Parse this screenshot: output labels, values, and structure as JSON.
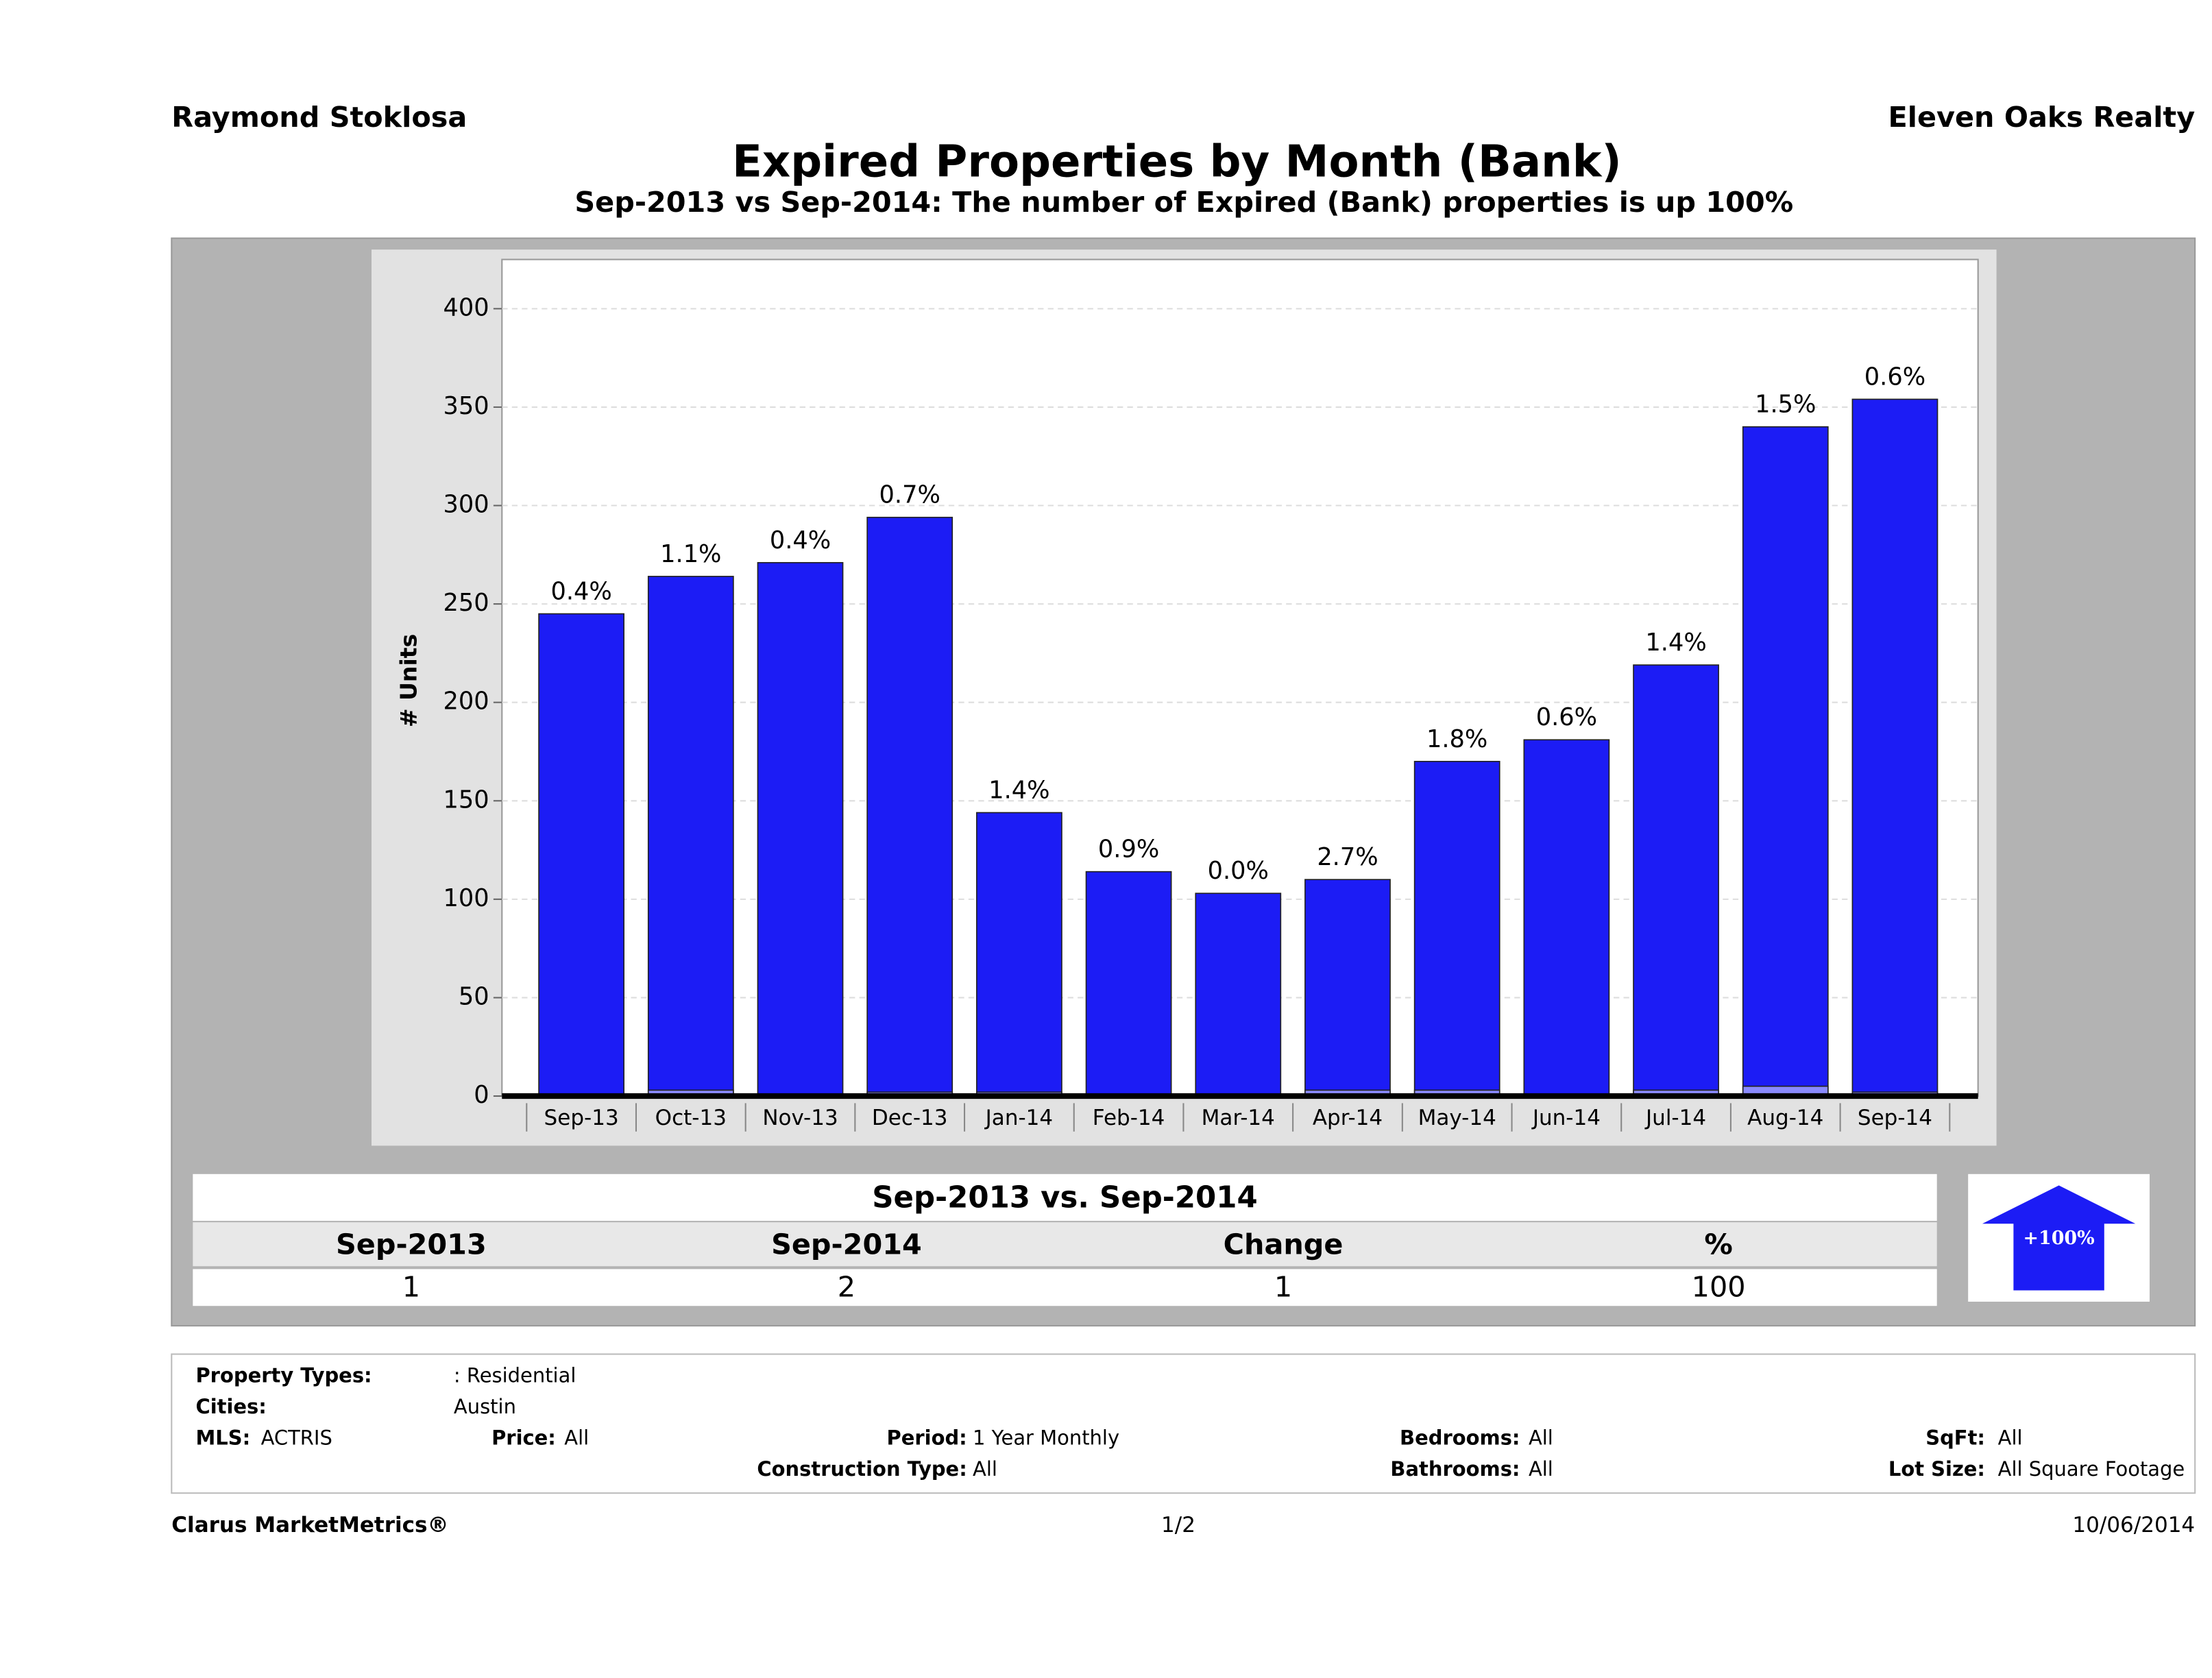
{
  "header": {
    "agent": "Raymond Stoklosa",
    "company": "Eleven Oaks Realty"
  },
  "chart_data": {
    "type": "bar",
    "title": "Expired Properties by Month (Bank)",
    "subtitle": "Sep-2013 vs Sep-2014: The number of Expired (Bank)  properties is up 100%",
    "y_label": "# Units",
    "categories": [
      "Sep-13",
      "Oct-13",
      "Nov-13",
      "Dec-13",
      "Jan-14",
      "Feb-14",
      "Mar-14",
      "Apr-14",
      "May-14",
      "Jun-14",
      "Jul-14",
      "Aug-14",
      "Sep-14"
    ],
    "series": [
      {
        "color": "#1c1cf5",
        "values": [
          245,
          264,
          271,
          294,
          144,
          114,
          103,
          110,
          170,
          181,
          219,
          340,
          354
        ]
      },
      {
        "color": "#8a8aff",
        "values": [
          1,
          3,
          1,
          2,
          2,
          1,
          0,
          3,
          3,
          1,
          3,
          5,
          2
        ]
      }
    ],
    "percent_labels": [
      "0.4%",
      "1.1%",
      "0.4%",
      "0.7%",
      "1.4%",
      "0.9%",
      "0.0%",
      "2.7%",
      "1.8%",
      "0.6%",
      "1.4%",
      "1.5%",
      "0.6%"
    ],
    "ylim": [
      0,
      425
    ],
    "yticks": [
      0,
      50,
      100,
      150,
      200,
      250,
      300,
      350,
      400
    ],
    "grid": true
  },
  "comparison": {
    "title": "Sep-2013 vs. Sep-2014",
    "headers": [
      "Sep-2013",
      "Sep-2014",
      "Change",
      "%"
    ],
    "values": [
      1,
      2,
      1,
      100
    ],
    "badge": "+100%"
  },
  "filters": [
    {
      "label": "Property Types:",
      "value": ": Residential"
    },
    {
      "label": "Cities:",
      "value": "Austin"
    },
    {
      "label": "MLS:",
      "value": "ACTRIS"
    },
    {
      "label": "Price:",
      "value": "All"
    },
    {
      "label": "Period:",
      "value": "1 Year Monthly"
    },
    {
      "label": "Construction Type:",
      "value": "All"
    },
    {
      "label": "Bedrooms:",
      "value": "All"
    },
    {
      "label": "Bathrooms:",
      "value": "All"
    },
    {
      "label": "SqFt:",
      "value": "All"
    },
    {
      "label": "Lot Size:",
      "value": "All Square Footage"
    }
  ],
  "footer": {
    "brand": "Clarus MarketMetrics®",
    "page": "1/2",
    "date": "10/06/2014"
  }
}
